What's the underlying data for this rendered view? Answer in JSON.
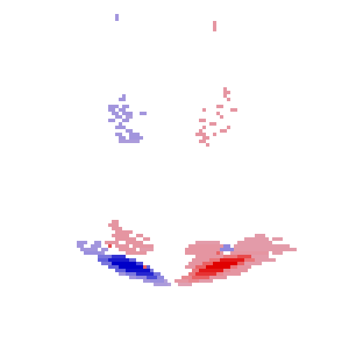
{
  "chart_data": {
    "type": "heatmap",
    "tick_labels": false,
    "xlim": [
      0,
      100
    ],
    "ylim": [
      0,
      100
    ],
    "color_range": [
      -1,
      1
    ],
    "cells": [
      [
        4,
        33,
        33,
        -0.3
      ],
      [
        5,
        33,
        33,
        -0.3
      ],
      [
        6,
        61,
        61,
        0.3
      ],
      [
        7,
        61,
        61,
        0.3
      ],
      [
        8,
        61,
        61,
        0.3
      ],
      [
        27,
        35,
        35,
        -0.3
      ],
      [
        28,
        34,
        35,
        -0.3
      ],
      [
        30,
        31,
        33,
        -0.3
      ],
      [
        30,
        35,
        36,
        -0.3
      ],
      [
        31,
        31,
        32,
        -0.3
      ],
      [
        31,
        34,
        35,
        -0.3
      ],
      [
        32,
        32,
        33,
        -0.3
      ],
      [
        32,
        35,
        37,
        -0.3
      ],
      [
        32,
        40,
        41,
        -0.3
      ],
      [
        33,
        33,
        34,
        -0.3
      ],
      [
        33,
        36,
        37,
        -0.25
      ],
      [
        34,
        31,
        32,
        -0.3
      ],
      [
        34,
        35,
        36,
        -0.3
      ],
      [
        35,
        34,
        34,
        -0.3
      ],
      [
        36,
        33,
        35,
        -0.3
      ],
      [
        37,
        36,
        37,
        -0.3
      ],
      [
        38,
        33,
        34,
        -0.3
      ],
      [
        38,
        37,
        39,
        -0.3
      ],
      [
        39,
        34,
        35,
        -0.3
      ],
      [
        39,
        37,
        40,
        -0.3
      ],
      [
        40,
        34,
        39,
        -0.25
      ],
      [
        25,
        64,
        64,
        0.3
      ],
      [
        26,
        64,
        65,
        0.3
      ],
      [
        27,
        64,
        64,
        0.3
      ],
      [
        28,
        65,
        65,
        0.3
      ],
      [
        30,
        62,
        63,
        0.3
      ],
      [
        31,
        58,
        58,
        0.3
      ],
      [
        31,
        66,
        67,
        0.3
      ],
      [
        32,
        62,
        62,
        0.3
      ],
      [
        33,
        63,
        63,
        0.3
      ],
      [
        34,
        57,
        58,
        0.3
      ],
      [
        35,
        60,
        61,
        0.3
      ],
      [
        36,
        58,
        58,
        0.3
      ],
      [
        36,
        65,
        65,
        0.3
      ],
      [
        37,
        57,
        57,
        0.3
      ],
      [
        37,
        63,
        64,
        0.3
      ],
      [
        38,
        56,
        58,
        0.3
      ],
      [
        38,
        61,
        61,
        0.3
      ],
      [
        39,
        58,
        59,
        0.3
      ],
      [
        40,
        57,
        58,
        0.3
      ],
      [
        41,
        59,
        59,
        0.3
      ],
      [
        63,
        32,
        33,
        0.3
      ],
      [
        64,
        31,
        33,
        0.3
      ],
      [
        65,
        32,
        34,
        0.3
      ],
      [
        66,
        33,
        37,
        0.3
      ],
      [
        67,
        32,
        36,
        0.3
      ],
      [
        67,
        39,
        40,
        0.3
      ],
      [
        68,
        33,
        38,
        0.3
      ],
      [
        68,
        41,
        42,
        0.3
      ],
      [
        69,
        30,
        33,
        0.3
      ],
      [
        69,
        36,
        40,
        0.3
      ],
      [
        70,
        31,
        31,
        0.7
      ],
      [
        70,
        33,
        36,
        0.3
      ],
      [
        70,
        38,
        43,
        0.3
      ],
      [
        71,
        34,
        38,
        0.3
      ],
      [
        71,
        40,
        43,
        0.25
      ],
      [
        72,
        36,
        41,
        0.3
      ],
      [
        69,
        22,
        24,
        -0.3
      ],
      [
        70,
        22,
        23,
        -0.3
      ],
      [
        70,
        26,
        28,
        -0.3
      ],
      [
        71,
        23,
        27,
        -0.3
      ],
      [
        72,
        24,
        28,
        -0.35
      ],
      [
        72,
        29,
        29,
        -0.3
      ],
      [
        69,
        27,
        28,
        -0.3
      ],
      [
        71,
        29,
        30,
        -0.3
      ],
      [
        78,
        34,
        35,
        -0.3
      ],
      [
        79,
        37,
        38,
        -0.3
      ],
      [
        80,
        41,
        42,
        -0.3
      ],
      [
        81,
        44,
        47,
        -0.25
      ],
      [
        81,
        48,
        48,
        -0.2
      ],
      [
        67,
        73,
        75,
        0.25
      ],
      [
        68,
        70,
        76,
        0.25
      ],
      [
        68,
        78,
        80,
        0.25
      ],
      [
        69,
        56,
        62,
        0.25
      ],
      [
        69,
        68,
        77,
        0.25
      ],
      [
        70,
        54,
        63,
        0.3
      ],
      [
        70,
        67,
        82,
        0.25
      ],
      [
        71,
        53,
        63,
        0.3
      ],
      [
        71,
        67,
        84,
        0.25
      ],
      [
        72,
        53,
        63,
        0.3
      ],
      [
        72,
        66,
        76,
        0.3
      ],
      [
        72,
        78,
        80,
        0.25
      ],
      [
        73,
        56,
        63,
        0.3
      ],
      [
        73,
        72,
        76,
        0.25
      ],
      [
        74,
        55,
        59,
        0.3
      ],
      [
        74,
        73,
        78,
        0.25
      ],
      [
        75,
        54,
        57,
        0.3
      ],
      [
        75,
        70,
        74,
        0.25
      ],
      [
        76,
        53,
        55,
        0.3
      ],
      [
        76,
        68,
        71,
        0.3
      ],
      [
        77,
        66,
        70,
        0.3
      ],
      [
        78,
        64,
        68,
        0.3
      ],
      [
        79,
        60,
        64,
        0.3
      ],
      [
        80,
        57,
        60,
        0.25
      ],
      [
        70,
        64,
        65,
        -0.4
      ],
      [
        71,
        63,
        66,
        -0.4
      ],
      [
        72,
        62,
        62,
        0.6
      ],
      [
        73,
        28,
        31,
        -0.5
      ],
      [
        73,
        32,
        35,
        -0.8
      ],
      [
        74,
        28,
        30,
        -0.6
      ],
      [
        74,
        31,
        36,
        -0.9
      ],
      [
        74,
        37,
        38,
        -0.6
      ],
      [
        75,
        29,
        31,
        -0.5
      ],
      [
        75,
        32,
        38,
        -1
      ],
      [
        75,
        39,
        40,
        -0.7
      ],
      [
        76,
        31,
        33,
        -0.6
      ],
      [
        76,
        34,
        40,
        -1
      ],
      [
        76,
        42,
        42,
        -0.6
      ],
      [
        77,
        33,
        35,
        -0.6
      ],
      [
        77,
        36,
        42,
        -0.95
      ],
      [
        77,
        43,
        43,
        -0.5
      ],
      [
        78,
        36,
        38,
        -0.5
      ],
      [
        78,
        39,
        43,
        -0.85
      ],
      [
        78,
        44,
        45,
        -0.5
      ],
      [
        79,
        39,
        41,
        -0.4
      ],
      [
        79,
        42,
        44,
        -0.7
      ],
      [
        79,
        45,
        46,
        -0.4
      ],
      [
        80,
        43,
        46,
        -0.35
      ],
      [
        80,
        47,
        47,
        -0.2
      ],
      [
        76,
        41,
        41,
        0.6
      ],
      [
        73,
        64,
        67,
        0.5
      ],
      [
        73,
        68,
        71,
        0.7
      ],
      [
        74,
        60,
        62,
        0.5
      ],
      [
        74,
        63,
        69,
        0.9
      ],
      [
        74,
        70,
        72,
        0.5
      ],
      [
        75,
        58,
        60,
        0.6
      ],
      [
        75,
        61,
        67,
        1
      ],
      [
        75,
        68,
        69,
        0.6
      ],
      [
        76,
        56,
        58,
        0.6
      ],
      [
        76,
        59,
        65,
        1
      ],
      [
        76,
        66,
        67,
        0.5
      ],
      [
        77,
        55,
        56,
        0.5
      ],
      [
        77,
        57,
        63,
        0.9
      ],
      [
        77,
        64,
        65,
        0.4
      ],
      [
        78,
        54,
        55,
        0.5
      ],
      [
        78,
        56,
        61,
        0.8
      ],
      [
        78,
        62,
        63,
        0.4
      ],
      [
        79,
        52,
        54,
        0.4
      ],
      [
        79,
        55,
        59,
        0.6
      ],
      [
        80,
        50,
        53,
        0.3
      ],
      [
        80,
        54,
        56,
        0.4
      ],
      [
        81,
        51,
        54,
        0.2
      ]
    ]
  }
}
